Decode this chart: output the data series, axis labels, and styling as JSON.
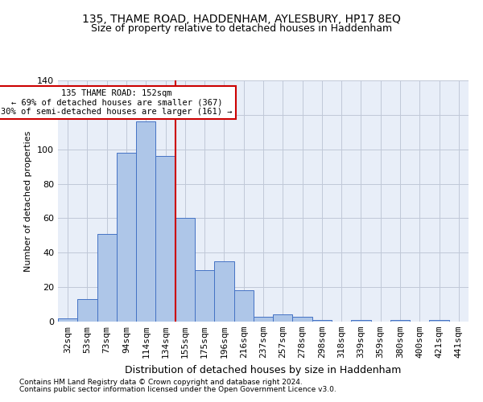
{
  "title": "135, THAME ROAD, HADDENHAM, AYLESBURY, HP17 8EQ",
  "subtitle": "Size of property relative to detached houses in Haddenham",
  "xlabel": "Distribution of detached houses by size in Haddenham",
  "ylabel": "Number of detached properties",
  "categories": [
    "32sqm",
    "53sqm",
    "73sqm",
    "94sqm",
    "114sqm",
    "134sqm",
    "155sqm",
    "175sqm",
    "196sqm",
    "216sqm",
    "237sqm",
    "257sqm",
    "278sqm",
    "298sqm",
    "318sqm",
    "339sqm",
    "359sqm",
    "380sqm",
    "400sqm",
    "421sqm",
    "441sqm"
  ],
  "values": [
    2,
    13,
    51,
    98,
    116,
    96,
    60,
    30,
    35,
    18,
    3,
    4,
    3,
    1,
    0,
    1,
    0,
    1,
    0,
    1,
    0
  ],
  "bar_color": "#aec6e8",
  "bar_edge_color": "#4472c4",
  "vline_x": 5.5,
  "vline_color": "#cc0000",
  "annotation_text": "135 THAME ROAD: 152sqm\n← 69% of detached houses are smaller (367)\n30% of semi-detached houses are larger (161) →",
  "annotation_box_color": "#ffffff",
  "annotation_box_edge_color": "#cc0000",
  "footnote1": "Contains HM Land Registry data © Crown copyright and database right 2024.",
  "footnote2": "Contains public sector information licensed under the Open Government Licence v3.0.",
  "title_fontsize": 10,
  "subtitle_fontsize": 9,
  "background_color": "#e8eef8",
  "ylim": [
    0,
    140
  ]
}
